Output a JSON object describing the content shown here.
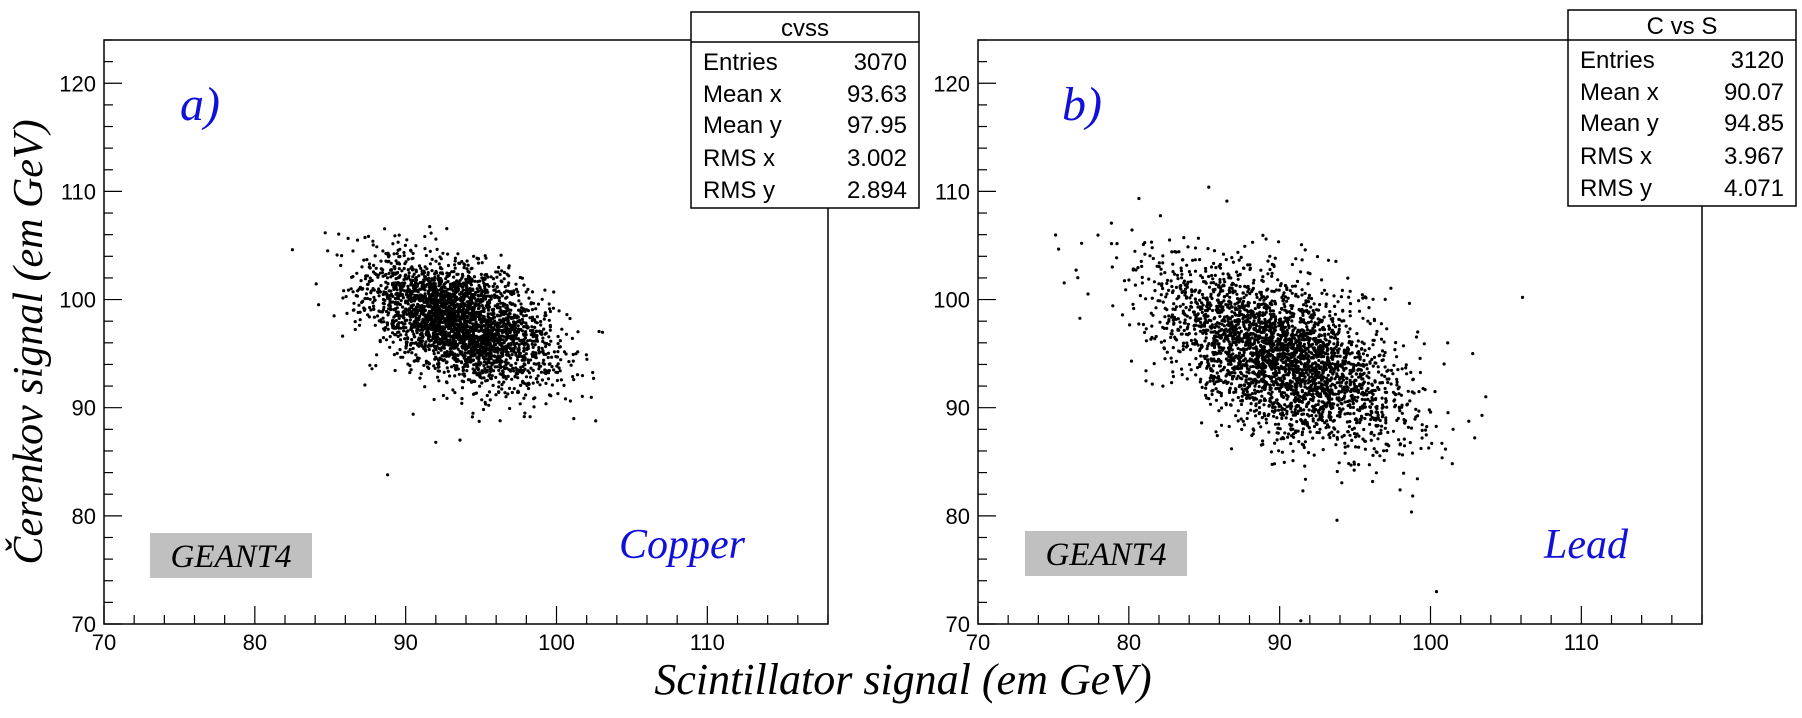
{
  "figure": {
    "xlabel": "Scintillator signal (em GeV)",
    "ylabel": "Čerenkov signal (em GeV)"
  },
  "chart_data": [
    {
      "type": "scatter",
      "panel_label": "a)",
      "material": "Copper",
      "tag": "GEANT4",
      "xlim": [
        70,
        118
      ],
      "ylim": [
        70,
        124
      ],
      "x_ticks": [
        70,
        80,
        90,
        100,
        110
      ],
      "y_ticks": [
        70,
        80,
        90,
        100,
        110,
        120
      ],
      "stats": {
        "title": "cvss",
        "rows": [
          {
            "label": "Entries",
            "value": "3070"
          },
          {
            "label": "Mean x",
            "value": "93.63"
          },
          {
            "label": "Mean y",
            "value": "97.95"
          },
          {
            "label": "RMS x",
            "value": "3.002"
          },
          {
            "label": "RMS y",
            "value": "2.894"
          }
        ]
      },
      "cluster": {
        "entries": 3070,
        "mean_x": 93.63,
        "mean_y": 97.95,
        "rms_x": 3.002,
        "rms_y": 2.894,
        "correlation": -0.5
      },
      "outliers": [
        [
          88.8,
          83.8
        ],
        [
          92.0,
          86.8
        ],
        [
          93.6,
          87.0
        ],
        [
          87.3,
          92.1
        ],
        [
          90.5,
          89.4
        ]
      ]
    },
    {
      "type": "scatter",
      "panel_label": "b)",
      "material": "Lead",
      "tag": "GEANT4",
      "xlim": [
        70,
        118
      ],
      "ylim": [
        70,
        124
      ],
      "x_ticks": [
        70,
        80,
        90,
        100,
        110
      ],
      "y_ticks": [
        70,
        80,
        90,
        100,
        110,
        120
      ],
      "stats": {
        "title": "C vs S",
        "rows": [
          {
            "label": "Entries",
            "value": "3120"
          },
          {
            "label": "Mean x",
            "value": "90.07"
          },
          {
            "label": "Mean y",
            "value": "94.85"
          },
          {
            "label": "RMS x",
            "value": "3.967"
          },
          {
            "label": "RMS y",
            "value": "4.071"
          }
        ]
      },
      "cluster": {
        "entries": 3120,
        "mean_x": 90.07,
        "mean_y": 94.85,
        "rms_x": 3.967,
        "rms_y": 4.071,
        "correlation": -0.55
      },
      "outliers": [
        [
          85.3,
          110.4
        ],
        [
          86.5,
          109.1
        ],
        [
          93.8,
          79.6
        ],
        [
          100.4,
          73.0
        ],
        [
          106.1,
          100.2
        ],
        [
          102.8,
          95.0
        ],
        [
          91.4,
          70.3
        ],
        [
          101.5,
          88.0
        ]
      ]
    }
  ]
}
